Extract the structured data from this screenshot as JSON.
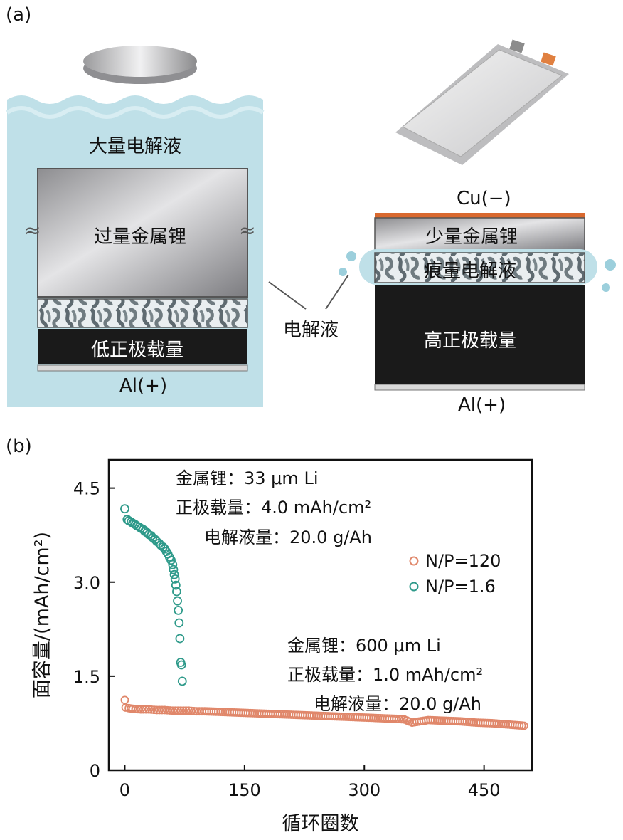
{
  "panel_a": {
    "label": "(a)",
    "left_cell": {
      "bulk_electrolyte": "大量电解液",
      "excess_lithium": "过量金属锂",
      "low_cathode_loading": "低正极载量",
      "current_collector": "Al(+)"
    },
    "right_cell": {
      "anode_collector": "Cu(−)",
      "little_lithium": "少量金属锂",
      "trace_electrolyte": "痕量电解液",
      "high_cathode_loading": "高正极载量",
      "current_collector": "Al(+)"
    },
    "electrolyte_callout": "电解液"
  },
  "panel_b": {
    "label": "(b)",
    "annotation_np16": {
      "line1": "金属锂：33 μm Li",
      "line2": "正极载量：4.0 mAh/cm²",
      "line3": "电解液量：20.0 g/Ah"
    },
    "annotation_np120": {
      "line1": "金属锂：600 μm Li",
      "line2": "正极载量：1.0 mAh/cm²",
      "line3": "电解液量：20.0 g/Ah"
    }
  },
  "colors": {
    "np120": "#e0876a",
    "np16": "#2e9a8a",
    "electrolyte_bath": "#bfe0e8",
    "cathode_dark": "#1a1a1a"
  },
  "chart_data": {
    "type": "scatter",
    "xlabel": "循环圈数",
    "ylabel": "面容量/(mAh/cm²)",
    "xlim": [
      -20,
      510
    ],
    "ylim": [
      0,
      4.95
    ],
    "xticks": [
      0,
      150,
      300,
      450
    ],
    "yticks": [
      0,
      1.5,
      3.0,
      4.5
    ],
    "xtick_labels": [
      "0",
      "150",
      "300",
      "450"
    ],
    "ytick_labels": [
      "0",
      "1.5",
      "3.0",
      "4.5"
    ],
    "legend": {
      "position": "right",
      "entries": [
        "N/P=120",
        "N/P=1.6"
      ]
    },
    "series": [
      {
        "name": "N/P=120",
        "color": "#e0876a",
        "x": [
          0,
          1,
          5,
          10,
          20,
          30,
          40,
          50,
          60,
          70,
          80,
          90,
          100,
          120,
          140,
          160,
          180,
          200,
          220,
          240,
          260,
          280,
          300,
          320,
          340,
          350,
          360,
          380,
          400,
          420,
          440,
          460,
          480,
          500
        ],
        "y": [
          1.12,
          1.0,
          0.99,
          0.98,
          0.97,
          0.97,
          0.96,
          0.96,
          0.95,
          0.95,
          0.95,
          0.94,
          0.94,
          0.93,
          0.92,
          0.91,
          0.9,
          0.89,
          0.88,
          0.87,
          0.86,
          0.85,
          0.84,
          0.83,
          0.82,
          0.81,
          0.76,
          0.8,
          0.79,
          0.78,
          0.76,
          0.75,
          0.73,
          0.71
        ]
      },
      {
        "name": "N/P=1.6",
        "color": "#2e9a8a",
        "x": [
          0,
          3,
          5,
          8,
          10,
          13,
          15,
          18,
          20,
          23,
          25,
          28,
          30,
          33,
          35,
          38,
          40,
          43,
          45,
          48,
          50,
          52,
          54,
          56,
          58,
          60,
          61,
          62,
          63,
          64,
          65,
          66,
          67,
          68,
          69,
          70,
          71,
          72
        ],
        "y": [
          4.17,
          4.0,
          3.98,
          3.96,
          3.94,
          3.92,
          3.9,
          3.88,
          3.86,
          3.84,
          3.81,
          3.79,
          3.76,
          3.74,
          3.71,
          3.68,
          3.65,
          3.62,
          3.59,
          3.56,
          3.53,
          3.49,
          3.45,
          3.4,
          3.35,
          3.28,
          3.2,
          3.12,
          3.05,
          2.95,
          2.85,
          2.7,
          2.55,
          2.35,
          2.1,
          1.72,
          1.68,
          1.42
        ]
      }
    ]
  }
}
